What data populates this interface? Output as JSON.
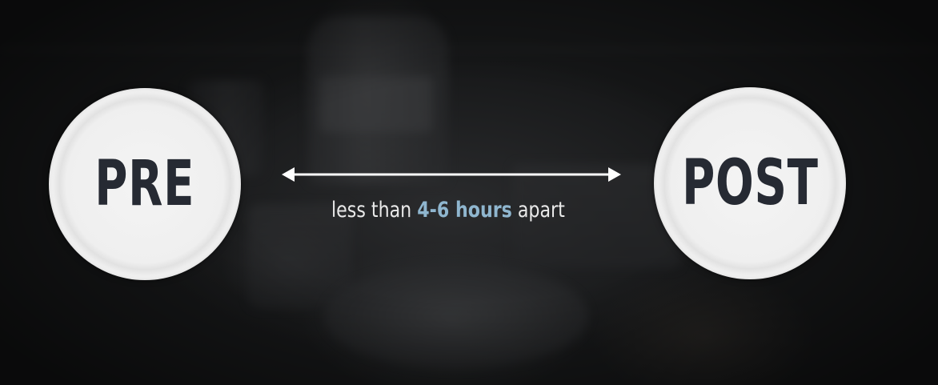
{
  "plates": {
    "pre_label": "PRE",
    "post_label": "POST"
  },
  "caption": {
    "before": "less than ",
    "highlight": "4-6 hours",
    "after": " apart"
  },
  "colors": {
    "plate_text": "#262a33",
    "caption_text": "#e9e9e9",
    "highlight": "#8fb6cf",
    "arrow": "#ffffff"
  },
  "icons": {
    "arrow": "double-headed-arrow-icon"
  }
}
